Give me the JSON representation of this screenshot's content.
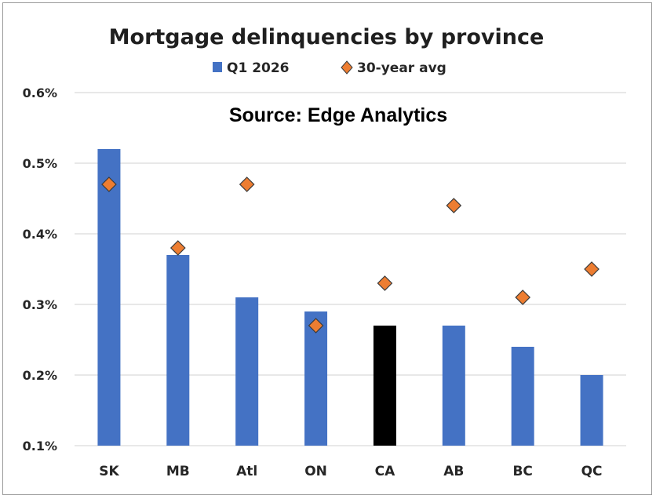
{
  "chart_data": {
    "type": "bar",
    "title": "Mortgage delinquencies by province",
    "annotation": "Source: Edge Analytics",
    "categories": [
      "SK",
      "MB",
      "Atl",
      "ON",
      "CA",
      "AB",
      "BC",
      "QC"
    ],
    "series": [
      {
        "name": "Q1 2026",
        "kind": "bar",
        "color": "#4472C4",
        "highlight": {
          "CA": "#000000"
        },
        "values": [
          0.52,
          0.37,
          0.31,
          0.29,
          0.27,
          0.27,
          0.24,
          0.2
        ]
      },
      {
        "name": "30-year avg",
        "kind": "marker",
        "marker": "diamond",
        "color": "#ED7D31",
        "values": [
          0.47,
          0.38,
          0.47,
          0.27,
          0.33,
          0.44,
          0.31,
          0.35
        ]
      }
    ],
    "ylim": [
      0.1,
      0.6
    ],
    "yticks": [
      {
        "value": 0.1,
        "label": "0.1%"
      },
      {
        "value": 0.2,
        "label": "0.2%"
      },
      {
        "value": 0.3,
        "label": "0.3%"
      },
      {
        "value": 0.4,
        "label": "0.4%"
      },
      {
        "value": 0.5,
        "label": "0.5%"
      },
      {
        "value": 0.6,
        "label": "0.6%"
      }
    ],
    "grid": true,
    "legend_position": "top-center",
    "xlabel": "",
    "ylabel": ""
  }
}
